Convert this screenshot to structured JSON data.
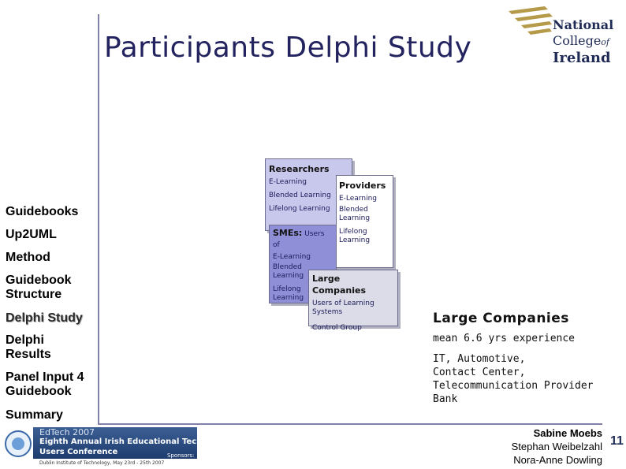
{
  "slide": {
    "title": "Participants Delphi Study",
    "page_number": "11"
  },
  "logo": {
    "line1": "National",
    "line2": "College",
    "line2_of": "of",
    "line3": "Ireland"
  },
  "nav": {
    "items": [
      {
        "label": "Guidebooks"
      },
      {
        "label": "Up2UML"
      },
      {
        "label": "Method"
      },
      {
        "label": "Guidebook Structure"
      },
      {
        "label": "Delphi Study",
        "active": true
      },
      {
        "label": "Delphi Results"
      },
      {
        "label": "Panel Input 4 Guidebook"
      },
      {
        "label": "Summary"
      }
    ]
  },
  "diagram": {
    "researchers": {
      "header": "Researchers",
      "items": [
        "E-Learning",
        "Blended Learning",
        "Lifelong Learning"
      ]
    },
    "providers": {
      "header": "Providers",
      "items": [
        "E-Learning",
        "Blended Learning",
        "Lifelong Learning"
      ]
    },
    "smes": {
      "header": "SMEs:",
      "header_suffix": " Users of",
      "items": [
        "E-Learning",
        "Blended Learning",
        "Lifelong Learning"
      ]
    },
    "large": {
      "header": "Large Companies",
      "items": [
        "Users of Learning Systems",
        "Control Group"
      ]
    }
  },
  "panel": {
    "heading": "Large Companies",
    "experience": "mean 6.6 yrs experience",
    "sectors": [
      "IT, Automotive,",
      "Contact Center,",
      "Telecommunication Provider",
      "Bank"
    ]
  },
  "footer": {
    "banner_title": "EdTech 2007",
    "banner_line1": "Eighth Annual Irish Educational Technology",
    "banner_line2": "Users Conference",
    "banner_sponsors": "Sponsors:",
    "banner_bottom": "Dublin Institute of Technology, May 23rd - 25th 2007",
    "authors": [
      "Sabine Moebs",
      "Stephan Weibelzahl",
      "Nora-Anne Dowling"
    ]
  }
}
